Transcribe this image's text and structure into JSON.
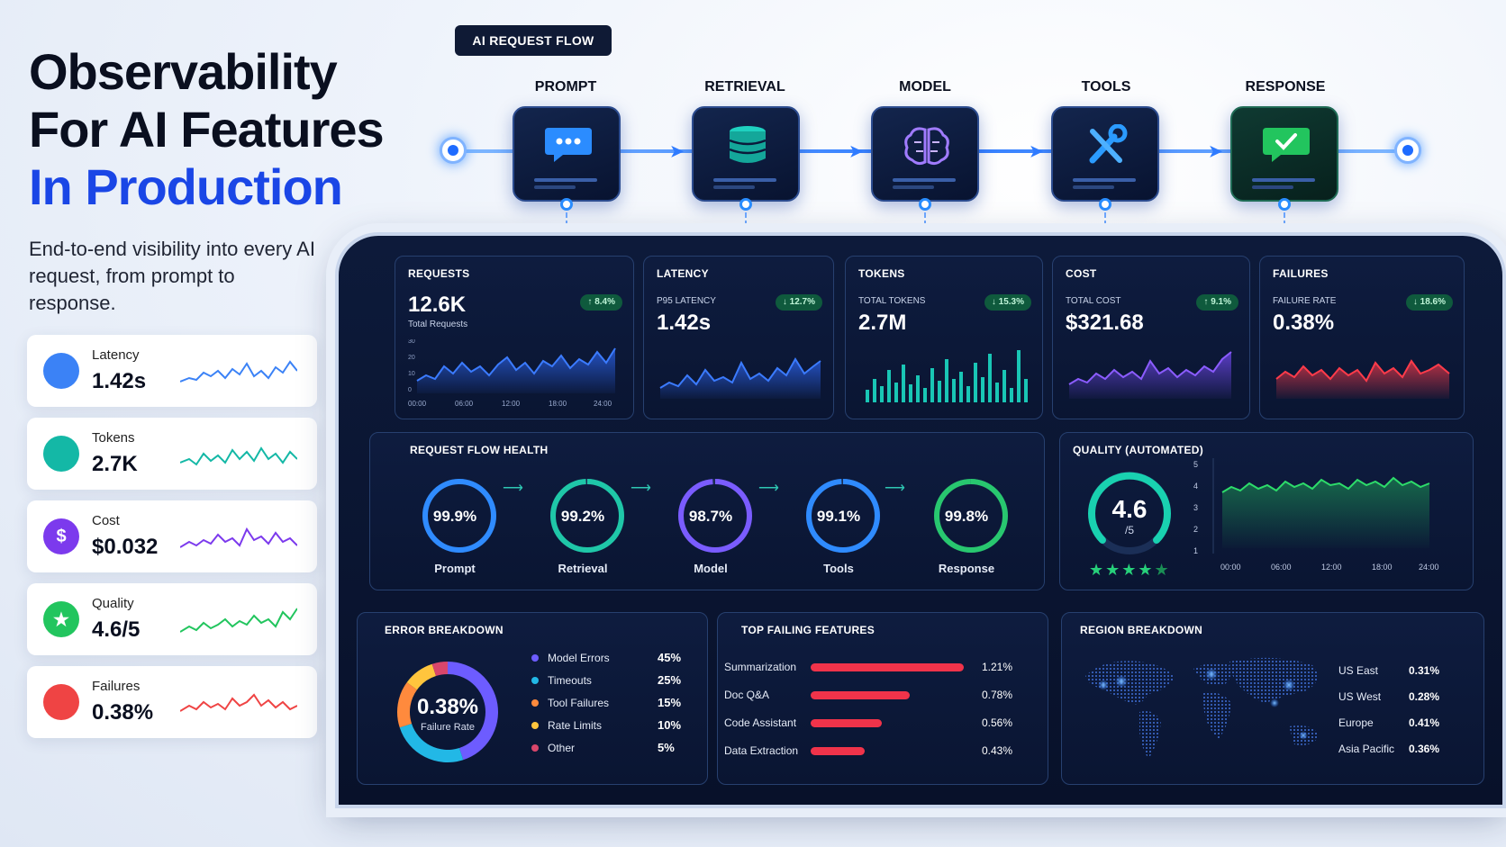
{
  "hero": {
    "title_line1": "Observability",
    "title_line2": "For AI Features",
    "title_line3": "In Production",
    "subtitle": "End-to-end visibility into every AI request, from prompt to response."
  },
  "metric_cards": [
    {
      "label": "Latency",
      "value": "1.42s",
      "icon": "clock-icon",
      "color": "#3b82f6"
    },
    {
      "label": "Tokens",
      "value": "2.7K",
      "icon": "chip-icon",
      "color": "#14b8a6"
    },
    {
      "label": "Cost",
      "value": "$0.032",
      "icon": "dollar-icon",
      "color": "#7c3aed"
    },
    {
      "label": "Quality",
      "value": "4.6/5",
      "icon": "star-badge-icon",
      "color": "#22c55e"
    },
    {
      "label": "Failures",
      "value": "0.38%",
      "icon": "warning-icon",
      "color": "#ef4444"
    }
  ],
  "flow": {
    "badge": "AI REQUEST FLOW",
    "steps": [
      {
        "label": "PROMPT",
        "icon": "chat-bubble-icon"
      },
      {
        "label": "RETRIEVAL",
        "icon": "database-icon"
      },
      {
        "label": "MODEL",
        "icon": "brain-icon"
      },
      {
        "label": "TOOLS",
        "icon": "tools-icon"
      },
      {
        "label": "RESPONSE",
        "icon": "check-message-icon"
      }
    ]
  },
  "kpis": {
    "requests": {
      "title": "REQUESTS",
      "value": "12.6K",
      "note": "Total Requests",
      "delta": "↑ 8.4%",
      "yticks": [
        "30",
        "20",
        "10",
        "0"
      ],
      "xticks": [
        "00:00",
        "06:00",
        "12:00",
        "18:00",
        "24:00"
      ]
    },
    "latency": {
      "title": "LATENCY",
      "sub": "P95 LATENCY",
      "value": "1.42s",
      "delta": "↓ 12.7%"
    },
    "tokens": {
      "title": "TOKENS",
      "sub": "TOTAL TOKENS",
      "value": "2.7M",
      "delta": "↓ 15.3%"
    },
    "cost": {
      "title": "COST",
      "sub": "TOTAL COST",
      "value": "$321.68",
      "delta": "↑ 9.1%"
    },
    "failures": {
      "title": "FAILURES",
      "sub": "FAILURE RATE",
      "value": "0.38%",
      "delta": "↓ 18.6%"
    }
  },
  "flow_health": {
    "title": "REQUEST FLOW HEALTH",
    "items": [
      {
        "label": "Prompt",
        "value": "99.9%",
        "pct": 0.999,
        "color": "#2f8bff"
      },
      {
        "label": "Retrieval",
        "value": "99.2%",
        "pct": 0.992,
        "color": "#1fc7a8"
      },
      {
        "label": "Model",
        "value": "98.7%",
        "pct": 0.987,
        "color": "#7a5cff"
      },
      {
        "label": "Tools",
        "value": "99.1%",
        "pct": 0.991,
        "color": "#2f8bff"
      },
      {
        "label": "Response",
        "value": "99.8%",
        "pct": 0.998,
        "color": "#28c76f"
      }
    ]
  },
  "quality": {
    "title": "QUALITY (AUTOMATED)",
    "score": "4.6",
    "scale": "/5",
    "stars": 4.6,
    "yticks": [
      "5",
      "4",
      "3",
      "2",
      "1"
    ],
    "xticks": [
      "00:00",
      "06:00",
      "12:00",
      "18:00",
      "24:00"
    ]
  },
  "error_breakdown": {
    "title": "ERROR BREAKDOWN",
    "center_value": "0.38%",
    "center_label": "Failure Rate",
    "items": [
      {
        "label": "Model Errors",
        "pct": "45%",
        "value": 45,
        "color": "#6d5cff"
      },
      {
        "label": "Timeouts",
        "pct": "25%",
        "value": 25,
        "color": "#22b8e6"
      },
      {
        "label": "Tool Failures",
        "pct": "15%",
        "value": 15,
        "color": "#ff8a3d"
      },
      {
        "label": "Rate Limits",
        "pct": "10%",
        "value": 10,
        "color": "#ffc53d"
      },
      {
        "label": "Other",
        "pct": "5%",
        "value": 5,
        "color": "#d9466b"
      }
    ]
  },
  "top_failing": {
    "title": "TOP FAILING FEATURES",
    "items": [
      {
        "label": "Summarization",
        "value": "1.21%",
        "rate": 1.21
      },
      {
        "label": "Doc Q&A",
        "value": "0.78%",
        "rate": 0.78
      },
      {
        "label": "Code Assistant",
        "value": "0.56%",
        "rate": 0.56
      },
      {
        "label": "Data Extraction",
        "value": "0.43%",
        "rate": 0.43
      }
    ]
  },
  "regions": {
    "title": "REGION BREAKDOWN",
    "items": [
      {
        "label": "US East",
        "value": "0.31%"
      },
      {
        "label": "US West",
        "value": "0.28%"
      },
      {
        "label": "Europe",
        "value": "0.41%"
      },
      {
        "label": "Asia Pacific",
        "value": "0.36%"
      }
    ]
  }
}
